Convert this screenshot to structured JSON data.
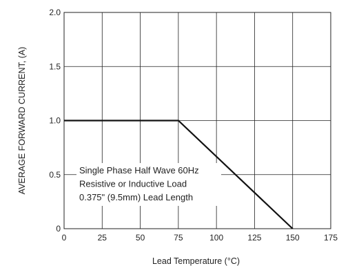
{
  "chart_data": {
    "type": "line",
    "title": "",
    "xlabel": "Lead Temperature  (°C)",
    "ylabel": "AVERAGE FORWARD CURRENT, (A)",
    "xlim": [
      0,
      175
    ],
    "ylim": [
      0,
      2.0
    ],
    "x_ticks": [
      0,
      25,
      50,
      75,
      100,
      125,
      150,
      175
    ],
    "x_tick_labels": [
      "0",
      "25",
      "50",
      "75",
      "100",
      "125",
      "150",
      "175"
    ],
    "y_ticks": [
      0,
      0.5,
      1.0,
      1.5,
      2.0
    ],
    "y_tick_labels": [
      "0",
      "0.5",
      "1.0",
      "1.5",
      "2.0"
    ],
    "grid": true,
    "series": [
      {
        "x": [
          0,
          75,
          150
        ],
        "y": [
          1.0,
          1.0,
          0
        ]
      }
    ],
    "annotations": [
      "Single Phase Half Wave 60Hz",
      "Resistive or Inductive Load",
      "0.375\" (9.5mm) Lead Length"
    ]
  }
}
